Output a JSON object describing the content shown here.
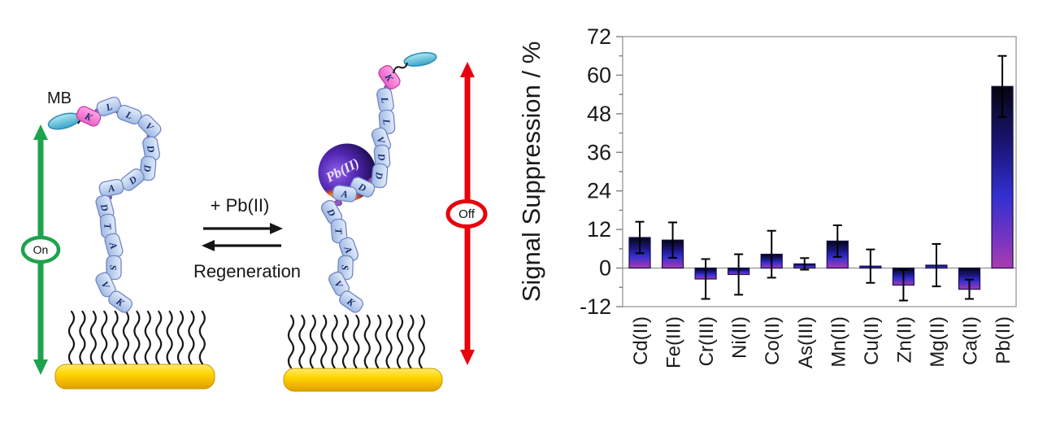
{
  "diagram": {
    "mb_label": "MB",
    "on_label": "On",
    "off_label": "Off",
    "forward_reaction_label": "+ Pb(II)",
    "reverse_reaction_label": "Regeneration",
    "pb_sphere_label": "Pb(II)",
    "peptide_sequence": [
      "K",
      "L",
      "L",
      "V",
      "D",
      "D",
      "D",
      "A",
      "D",
      "T",
      "A",
      "S",
      "V",
      "K"
    ],
    "colors": {
      "on_arrow": "#1fa24e",
      "off_arrow": "#e8000d",
      "mb_probe": "#4fb4d6",
      "bead_fill": "#b9cdec",
      "bead_lysine_fill": "#f26fd3",
      "connector": "#9a55bd",
      "gold_electrode": "#ffd400",
      "pb_sphere_purple": "#7d4fe8",
      "pb_sphere_dark": "#0c0526",
      "pb_sphere_glow": "#ff7300"
    }
  },
  "chart_data": {
    "type": "bar",
    "title": "",
    "xlabel": "",
    "ylabel": "Signal Suppression / %",
    "ylim": [
      -12,
      72
    ],
    "ytick_major": 12,
    "ytick_minor": 6,
    "ytick_labels": [
      72,
      60,
      48,
      36,
      24,
      12,
      0,
      -12
    ],
    "grid": false,
    "legend": false,
    "categories": [
      "Cd(II)",
      "Fe(III)",
      "Cr(III)",
      "Ni(II)",
      "Co(II)",
      "As(III)",
      "Mn(II)",
      "Cu(II)",
      "Zn(II)",
      "Mg(II)",
      "Ca(II)",
      "Pb(II)"
    ],
    "values": [
      9.5,
      8.7,
      -3.4,
      -2.0,
      4.3,
      1.3,
      8.4,
      0.6,
      -5.3,
      0.9,
      -6.6,
      56.5
    ],
    "errors": [
      4.9,
      5.5,
      6.2,
      6.3,
      7.3,
      1.8,
      4.9,
      5.2,
      4.8,
      6.6,
      3.0,
      9.5
    ],
    "bar_gradient": [
      "#050510",
      "#1c1780",
      "#3130cf",
      "#7a35c0",
      "#ab3cae"
    ],
    "axis_color": "#a6a6a6",
    "tick_color": "#7f7f7f",
    "text_color": "#1a1a1a",
    "error_bar_color": "#000000"
  }
}
